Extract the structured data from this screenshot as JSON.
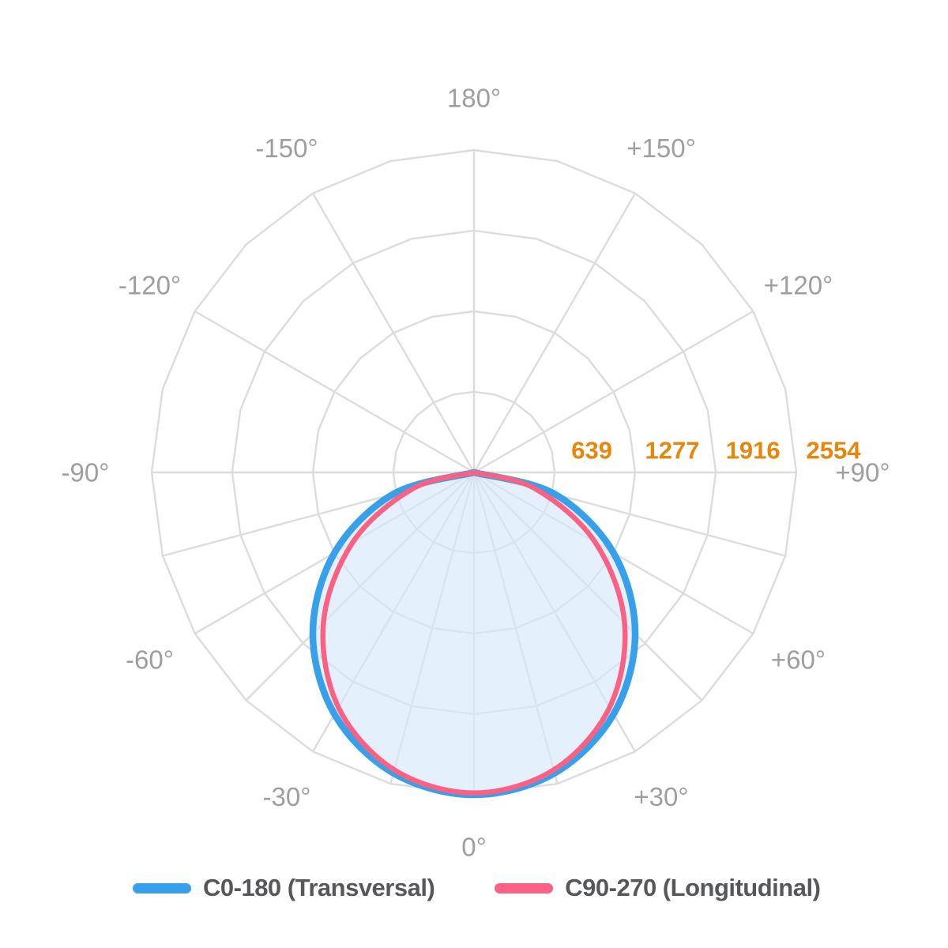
{
  "chart_data": {
    "type": "line",
    "subtype": "polar-photometric",
    "title": "",
    "r_max": 2554,
    "radial_ticks": [
      {
        "value": 639,
        "label": "639"
      },
      {
        "value": 1277,
        "label": "1277"
      },
      {
        "value": 1916,
        "label": "1916"
      },
      {
        "value": 2554,
        "label": "2554"
      }
    ],
    "angle_ticks": [
      {
        "deg": 0,
        "label": "0°"
      },
      {
        "deg": 30,
        "label": "+30°"
      },
      {
        "deg": 60,
        "label": "+60°"
      },
      {
        "deg": 90,
        "label": "+90°"
      },
      {
        "deg": 120,
        "label": "+120°"
      },
      {
        "deg": 150,
        "label": "+150°"
      },
      {
        "deg": 180,
        "label": "180°"
      },
      {
        "deg": -150,
        "label": "-150°"
      },
      {
        "deg": -120,
        "label": "-120°"
      },
      {
        "deg": -90,
        "label": "-90°"
      },
      {
        "deg": -60,
        "label": "-60°"
      },
      {
        "deg": -30,
        "label": "-30°"
      }
    ],
    "gamma_deg": [
      -90,
      -75,
      -60,
      -45,
      -30,
      -15,
      0,
      15,
      30,
      45,
      60,
      75,
      90
    ],
    "series": [
      {
        "name": "C0-180 (Transversal)",
        "color": "#36A0EB",
        "fill": "rgba(214,232,250,0.65)",
        "stroke_width": 8.5,
        "values": [
          0,
          661,
          1277,
          1806,
          2212,
          2467,
          2554,
          2467,
          2212,
          1806,
          1277,
          661,
          0
        ]
      },
      {
        "name": "C90-270 (Longitudinal)",
        "color": "#FA6183",
        "fill": "none",
        "stroke_width": 6.5,
        "values": [
          0,
          506,
          1110,
          1687,
          2149,
          2440,
          2540,
          2440,
          2149,
          1687,
          1110,
          506,
          0
        ]
      }
    ],
    "grid": {
      "color": "#DCDCDC",
      "spoke_step_lower_deg": 15,
      "spoke_step_upper_deg": 30,
      "ring_vertex_step_deg": 15
    },
    "legend_position": "bottom"
  },
  "legend": {
    "items": [
      {
        "label": "C0-180 (Transversal)",
        "color": "#36A0EB"
      },
      {
        "label": "C90-270 (Longitudinal)",
        "color": "#FA6183"
      }
    ]
  },
  "styles": {
    "angle_tick_color": "#9E9EA0",
    "radial_tick_color": "#E8860B",
    "legend_text_color": "#56575B",
    "background": "#FFFFFF"
  }
}
